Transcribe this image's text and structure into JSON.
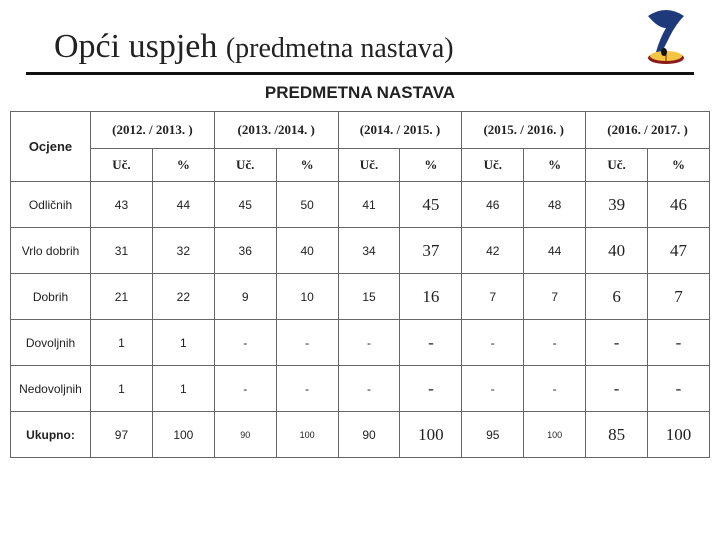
{
  "icon": {
    "name": "quill-book-icon",
    "feather": "#1e3a7a",
    "book_pages": "#f4c542",
    "book_cover": "#8a1b1b"
  },
  "title_main": "Opći uspjeh ",
  "title_sub": "(predmetna nastava)",
  "subtitle": "PREDMETNA NASTAVA",
  "col_head": "Ocjene",
  "year_headers": [
    "(2012. / 2013. )",
    "(2013. /2014. )",
    "(2014. / 2015. )",
    "(2015. / 2016. )",
    "(2016. / 2017. )"
  ],
  "sub_headers": [
    "Uč.",
    "%"
  ],
  "rows": [
    {
      "label": "Odličnih",
      "cells": [
        {
          "v": "43",
          "s": "n"
        },
        {
          "v": "44",
          "s": "n"
        },
        {
          "v": "45",
          "s": "n"
        },
        {
          "v": "50",
          "s": "n"
        },
        {
          "v": "41",
          "s": "n"
        },
        {
          "v": "45",
          "s": "b"
        },
        {
          "v": "46",
          "s": "n"
        },
        {
          "v": "48",
          "s": "n"
        },
        {
          "v": "39",
          "s": "b"
        },
        {
          "v": "46",
          "s": "b"
        }
      ]
    },
    {
      "label": "Vrlo dobrih",
      "cells": [
        {
          "v": "31",
          "s": "n"
        },
        {
          "v": "32",
          "s": "n"
        },
        {
          "v": "36",
          "s": "n"
        },
        {
          "v": "40",
          "s": "n"
        },
        {
          "v": "34",
          "s": "n"
        },
        {
          "v": "37",
          "s": "b"
        },
        {
          "v": "42",
          "s": "n"
        },
        {
          "v": "44",
          "s": "n"
        },
        {
          "v": "40",
          "s": "b"
        },
        {
          "v": "47",
          "s": "b"
        }
      ]
    },
    {
      "label": "Dobrih",
      "cells": [
        {
          "v": "21",
          "s": "n"
        },
        {
          "v": "22",
          "s": "n"
        },
        {
          "v": "9",
          "s": "n"
        },
        {
          "v": "10",
          "s": "n"
        },
        {
          "v": "15",
          "s": "n"
        },
        {
          "v": "16",
          "s": "b"
        },
        {
          "v": "7",
          "s": "n"
        },
        {
          "v": "7",
          "s": "n"
        },
        {
          "v": "6",
          "s": "b"
        },
        {
          "v": "7",
          "s": "b"
        }
      ]
    },
    {
      "label": "Dovoljnih",
      "cells": [
        {
          "v": "1",
          "s": "n"
        },
        {
          "v": "1",
          "s": "n"
        },
        {
          "v": "-",
          "s": "n"
        },
        {
          "v": "-",
          "s": "n"
        },
        {
          "v": "-",
          "s": "n"
        },
        {
          "v": "-",
          "s": "b"
        },
        {
          "v": "-",
          "s": "n"
        },
        {
          "v": "-",
          "s": "n"
        },
        {
          "v": "-",
          "s": "b"
        },
        {
          "v": "-",
          "s": "b"
        }
      ]
    },
    {
      "label": "Nedovoljnih",
      "cells": [
        {
          "v": "1",
          "s": "n"
        },
        {
          "v": "1",
          "s": "n"
        },
        {
          "v": "-",
          "s": "n"
        },
        {
          "v": "-",
          "s": "n"
        },
        {
          "v": "-",
          "s": "n"
        },
        {
          "v": "-",
          "s": "b"
        },
        {
          "v": "-",
          "s": "n"
        },
        {
          "v": "-",
          "s": "n"
        },
        {
          "v": "-",
          "s": "b"
        },
        {
          "v": "-",
          "s": "b"
        }
      ]
    },
    {
      "label": "Ukupno:",
      "ukupno": true,
      "cells": [
        {
          "v": "97",
          "s": "n"
        },
        {
          "v": "100",
          "s": "n"
        },
        {
          "v": "90",
          "s": "sm"
        },
        {
          "v": "100",
          "s": "sm"
        },
        {
          "v": "90",
          "s": "n"
        },
        {
          "v": "100",
          "s": "b"
        },
        {
          "v": "95",
          "s": "n"
        },
        {
          "v": "100",
          "s": "sm"
        },
        {
          "v": "85",
          "s": "b"
        },
        {
          "v": "100",
          "s": "b"
        }
      ]
    }
  ]
}
